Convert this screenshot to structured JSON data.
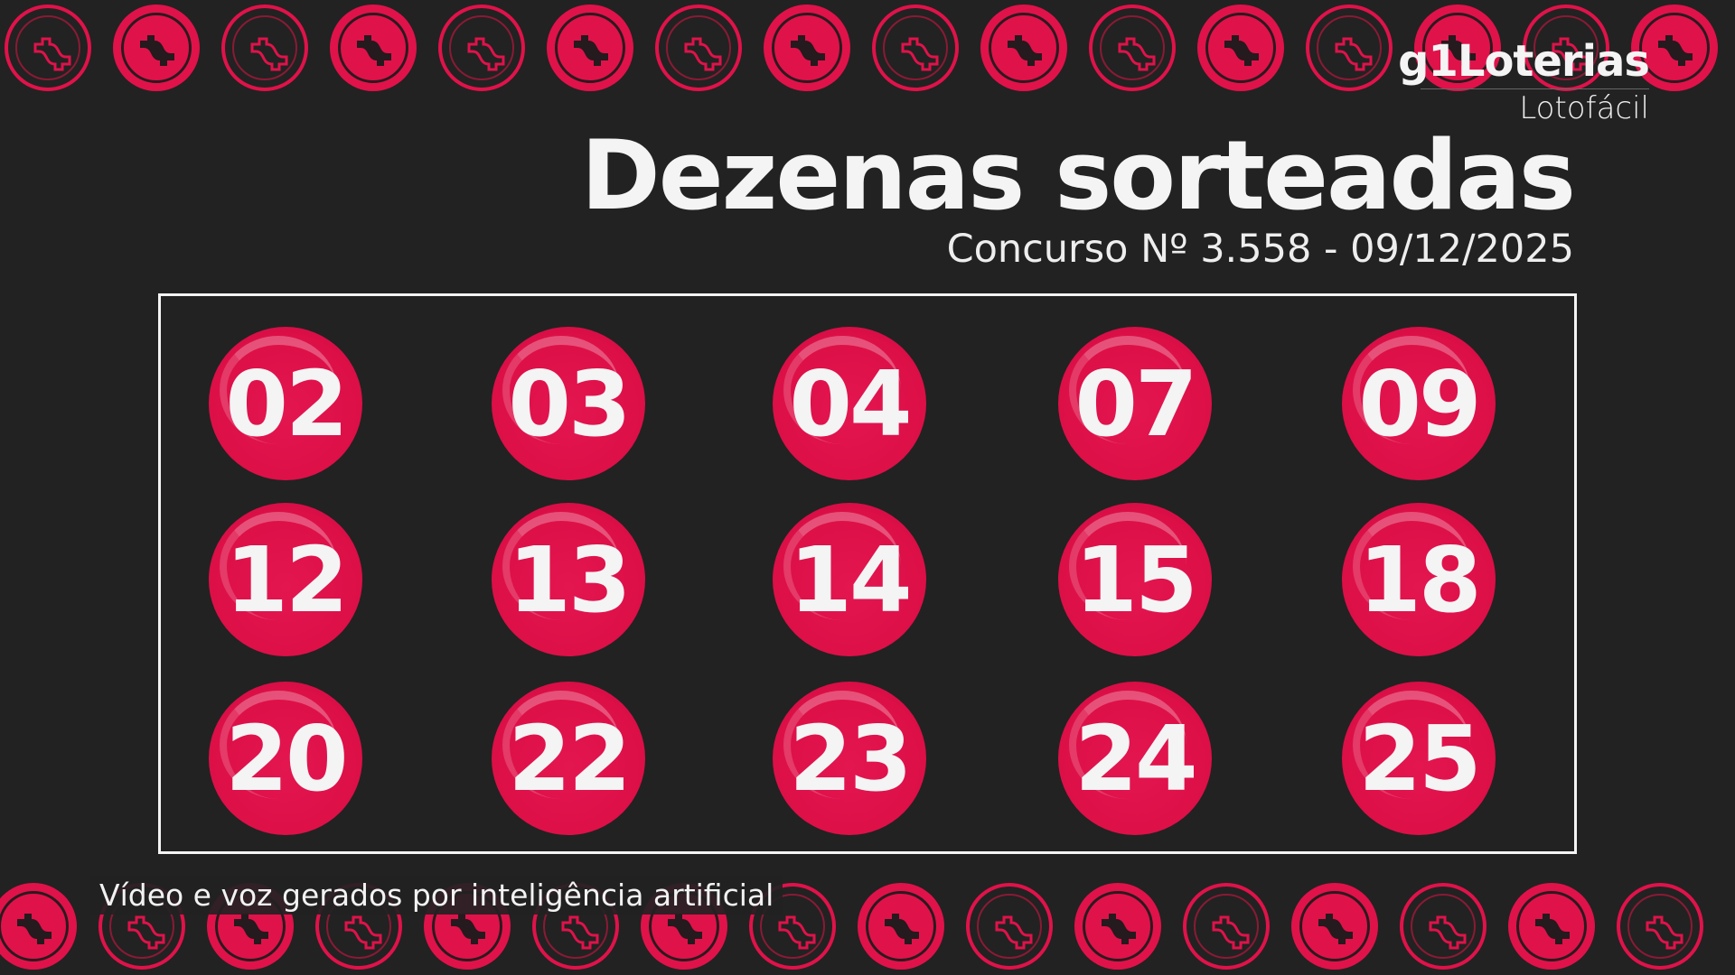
{
  "header": {
    "logo": "g1Loterias",
    "lottery": "Lotofácil",
    "title": "Dezenas sorteadas",
    "contest": "Concurso Nº 3.558 - 09/12/2025"
  },
  "numbers": [
    "02",
    "03",
    "04",
    "07",
    "09",
    "12",
    "13",
    "14",
    "15",
    "18",
    "20",
    "22",
    "23",
    "24",
    "25"
  ],
  "caption": "Vídeo e voz gerados por inteligência artificial",
  "colors": {
    "accent": "#e0124a",
    "background": "#222222",
    "text": "#f4f4f4"
  },
  "decoration_icon": "dollar-coin-icon"
}
